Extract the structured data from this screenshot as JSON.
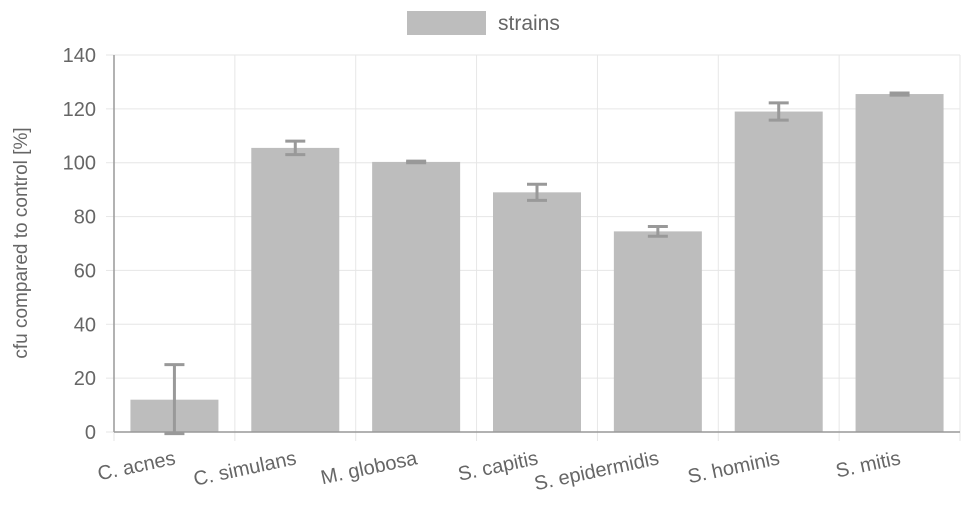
{
  "chart_data": {
    "type": "bar",
    "categories": [
      "C. acnes",
      "C. simulans",
      "M. globosa",
      "S. capitis",
      "S. epidermidis",
      "S. hominis",
      "S. mitis"
    ],
    "series": [
      {
        "name": "strains",
        "values": [
          12,
          105.5,
          100.3,
          89,
          74.5,
          119,
          125.5
        ],
        "error": [
          13,
          2.5,
          0.3,
          3,
          1.8,
          3.2,
          0.4
        ],
        "color": "#bdbdbd",
        "error_color": "#999999"
      }
    ],
    "ylabel": "cfu compared to control [%]",
    "xlabel": "",
    "ylim": [
      0,
      140
    ],
    "yticks": [
      0,
      20,
      40,
      60,
      80,
      100,
      120,
      140
    ],
    "grid": true,
    "legend_position": "top-center",
    "colors": {
      "grid": "#e6e6e6",
      "axis": "#999999",
      "text": "#666666"
    }
  }
}
